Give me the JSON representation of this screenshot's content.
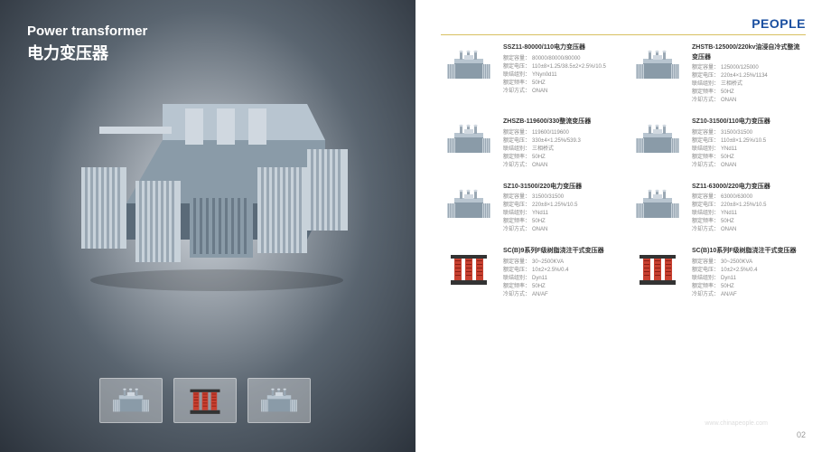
{
  "left": {
    "title_en": "Power transformer",
    "title_cn": "电力变压器",
    "hero_colors": {
      "body": "#8a9ba8",
      "body_light": "#b8c5d0",
      "body_dark": "#5a6a78",
      "fin": "#c8d2da",
      "fin_dark": "#9aa8b4",
      "top": "#d0d8e0"
    },
    "thumbs": [
      {
        "type": "transformer",
        "color1": "#8a9ba8",
        "color2": "#c8d2da"
      },
      {
        "type": "dry",
        "color1": "#c84030",
        "color2": "#333"
      },
      {
        "type": "transformer",
        "color1": "#8a9ba8",
        "color2": "#c8d2da"
      }
    ]
  },
  "right": {
    "brand": "PEOPLE",
    "brand_color": "#1a4fa0",
    "rule_color": "#d8c060",
    "spec_labels": [
      "额定容量：",
      "额定电压：",
      "联结组别：",
      "额定频率：",
      "冷却方式："
    ],
    "products": [
      {
        "name": "SSZ11-80000/110电力变压器",
        "render": "transformer",
        "specs": [
          "80000/80000/80000",
          "110±8×1.25/38.5±2×2.5%/10.5",
          "YNyn0d11",
          "50HZ",
          "ONAN"
        ]
      },
      {
        "name": "ZHSTB-125000/220kv油浸自冷式整流变压器",
        "render": "transformer",
        "specs": [
          "125000/125000",
          "220±4×1.25%/1134",
          "三相桥式",
          "50HZ",
          "ONAN"
        ]
      },
      {
        "name": "ZHSZB-119600/330整流变压器",
        "render": "transformer",
        "specs": [
          "119600/119600",
          "330±4×1.25%/539.3",
          "三相桥式",
          "50HZ",
          "ONAN"
        ]
      },
      {
        "name": "SZ10-31500/110电力变压器",
        "render": "transformer",
        "specs": [
          "31500/31500",
          "110±8×1.25%/10.5",
          "YNd11",
          "50HZ",
          "ONAN"
        ]
      },
      {
        "name": "SZ10-31500/220电力变压器",
        "render": "transformer",
        "specs": [
          "31500/31500",
          "220±8×1.25%/10.5",
          "YNd11",
          "50HZ",
          "ONAN"
        ]
      },
      {
        "name": "SZ11-63000/220电力变压器",
        "render": "transformer",
        "specs": [
          "63000/63000",
          "220±8×1.25%/10.5",
          "YNd11",
          "50HZ",
          "ONAN"
        ]
      },
      {
        "name": "SC(B)9系列F级树脂浇注干式变压器",
        "render": "dry",
        "specs": [
          "30~2500KVA",
          "10±2×2.5%/0.4",
          "Dyn11",
          "50HZ",
          "AN/AF"
        ]
      },
      {
        "name": "SC(B)10系列F级树脂浇注干式变压器",
        "render": "dry",
        "specs": [
          "30~2500KVA",
          "10±2×2.5%/0.4",
          "Dyn11",
          "50HZ",
          "AN/AF"
        ]
      }
    ],
    "watermark": "www.chinapeople.com",
    "page_number": "02"
  }
}
